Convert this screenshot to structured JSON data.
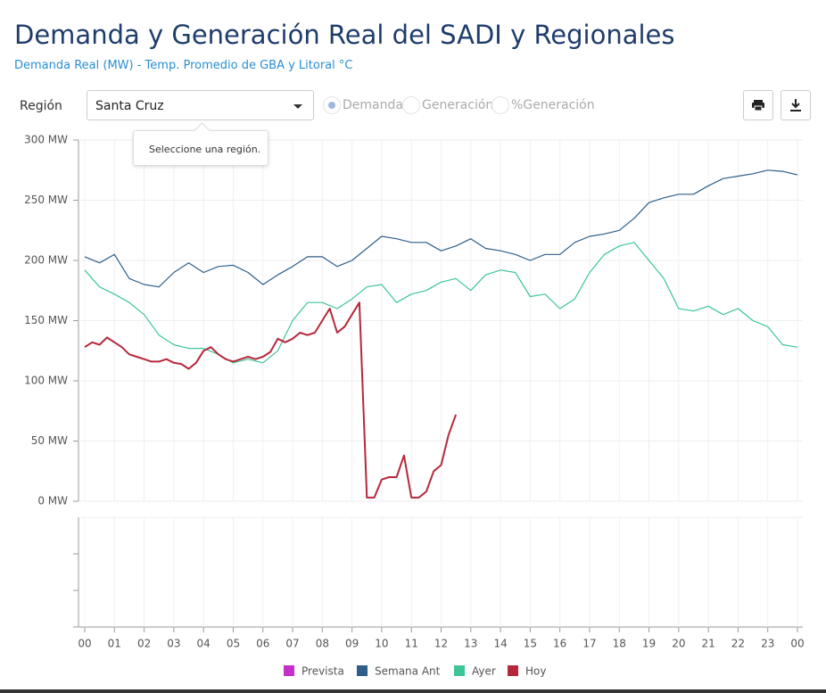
{
  "header": {
    "title": "Demanda y Generación Real del SADI y Regionales",
    "subtitle": "Demanda Real (MW) - Temp. Promedio de GBA y Litoral °C"
  },
  "controls": {
    "region_label": "Región",
    "region_value": "Santa Cruz",
    "options": [
      "Demanda",
      "Generación",
      "%Generación"
    ],
    "tooltip": "Seleccione una región."
  },
  "chart_data": {
    "type": "line",
    "xlim": [
      0,
      24
    ],
    "xticks": [
      {
        "value": 0,
        "label": "00"
      },
      {
        "value": 1,
        "label": "01"
      },
      {
        "value": 2,
        "label": "02"
      },
      {
        "value": 3,
        "label": "03"
      },
      {
        "value": 4,
        "label": "04"
      },
      {
        "value": 5,
        "label": "05"
      },
      {
        "value": 6,
        "label": "06"
      },
      {
        "value": 7,
        "label": "07"
      },
      {
        "value": 8,
        "label": "08"
      },
      {
        "value": 9,
        "label": "09"
      },
      {
        "value": 10,
        "label": "10"
      },
      {
        "value": 11,
        "label": "11"
      },
      {
        "value": 12,
        "label": "12"
      },
      {
        "value": 13,
        "label": "13"
      },
      {
        "value": 14,
        "label": "14"
      },
      {
        "value": 15,
        "label": "15"
      },
      {
        "value": 16,
        "label": "16"
      },
      {
        "value": 17,
        "label": "17"
      },
      {
        "value": 18,
        "label": "18"
      },
      {
        "value": 19,
        "label": "19"
      },
      {
        "value": 20,
        "label": "20"
      },
      {
        "value": 21,
        "label": "21"
      },
      {
        "value": 22,
        "label": "22"
      },
      {
        "value": 23,
        "label": "23"
      },
      {
        "value": 24,
        "label": "00"
      }
    ],
    "ylim": [
      0,
      300
    ],
    "yticks": [
      {
        "value": 0,
        "label": "0 MW"
      },
      {
        "value": 50,
        "label": "50 MW"
      },
      {
        "value": 100,
        "label": "100 MW"
      },
      {
        "value": 150,
        "label": "150 MW"
      },
      {
        "value": 200,
        "label": "200 MW"
      },
      {
        "value": 250,
        "label": "250 MW"
      },
      {
        "value": 300,
        "label": "300 MW"
      }
    ],
    "grid": true,
    "series": [
      {
        "name": "Prevista",
        "color": "#c530c8",
        "x": [],
        "values": []
      },
      {
        "name": "Semana Ant",
        "color": "#2d5f8a",
        "x": [
          0,
          0.5,
          1,
          1.5,
          2,
          2.5,
          3,
          3.5,
          4,
          4.5,
          5,
          5.5,
          6,
          6.5,
          7,
          7.5,
          8,
          8.5,
          9,
          9.5,
          10,
          10.5,
          11,
          11.5,
          12,
          12.5,
          13,
          13.5,
          14,
          14.5,
          15,
          15.5,
          16,
          16.5,
          17,
          17.5,
          18,
          18.5,
          19,
          19.5,
          20,
          20.5,
          21,
          21.5,
          22,
          22.5,
          23,
          23.5,
          24
        ],
        "values": [
          203,
          198,
          205,
          185,
          180,
          178,
          190,
          198,
          190,
          195,
          196,
          190,
          180,
          188,
          195,
          203,
          203,
          195,
          200,
          210,
          220,
          218,
          215,
          215,
          208,
          212,
          218,
          210,
          208,
          205,
          200,
          205,
          205,
          215,
          220,
          222,
          225,
          235,
          248,
          252,
          255,
          255,
          262,
          268,
          270,
          272,
          275,
          274,
          271
        ]
      },
      {
        "name": "Ayer",
        "color": "#3cc596",
        "x": [
          0,
          0.5,
          1,
          1.5,
          2,
          2.5,
          3,
          3.5,
          4,
          4.5,
          5,
          5.5,
          6,
          6.5,
          7,
          7.5,
          8,
          8.5,
          9,
          9.5,
          10,
          10.5,
          11,
          11.5,
          12,
          12.5,
          13,
          13.5,
          14,
          14.5,
          15,
          15.5,
          16,
          16.5,
          17,
          17.5,
          18,
          18.5,
          19,
          19.5,
          20,
          20.5,
          21,
          21.5,
          22,
          22.5,
          23,
          23.5,
          24
        ],
        "values": [
          192,
          178,
          172,
          165,
          155,
          138,
          130,
          127,
          127,
          122,
          115,
          118,
          115,
          125,
          150,
          165,
          165,
          160,
          168,
          178,
          180,
          165,
          172,
          175,
          182,
          185,
          175,
          188,
          192,
          190,
          170,
          172,
          160,
          168,
          190,
          205,
          212,
          215,
          200,
          185,
          160,
          158,
          162,
          155,
          160,
          150,
          145,
          130,
          128
        ]
      },
      {
        "name": "Hoy",
        "color": "#b5283c",
        "x": [
          0,
          0.25,
          0.5,
          0.75,
          1,
          1.25,
          1.5,
          1.75,
          2,
          2.25,
          2.5,
          2.75,
          3,
          3.25,
          3.5,
          3.75,
          4,
          4.25,
          4.5,
          4.75,
          5,
          5.25,
          5.5,
          5.75,
          6,
          6.25,
          6.5,
          6.75,
          7,
          7.25,
          7.5,
          7.75,
          8,
          8.25,
          8.5,
          8.75,
          9,
          9.25,
          9.5,
          9.75,
          10,
          10.25,
          10.5,
          10.75,
          11,
          11.25,
          11.5,
          11.75,
          12,
          12.25,
          12.5
        ],
        "values": [
          128,
          132,
          130,
          136,
          132,
          128,
          122,
          120,
          118,
          116,
          116,
          118,
          115,
          114,
          110,
          115,
          125,
          128,
          122,
          118,
          116,
          118,
          120,
          118,
          120,
          124,
          135,
          132,
          135,
          140,
          138,
          140,
          150,
          160,
          140,
          145,
          155,
          165,
          3,
          3,
          18,
          20,
          20,
          38,
          3,
          3,
          8,
          25,
          30,
          55,
          72
        ]
      }
    ]
  }
}
